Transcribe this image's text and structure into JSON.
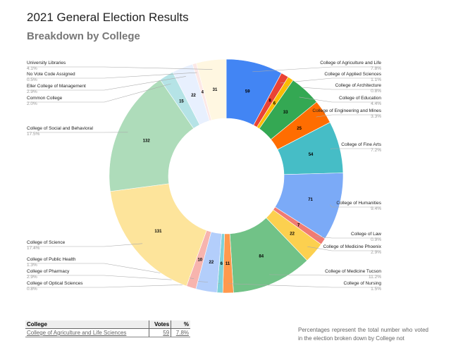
{
  "title": "2021 General Election Results",
  "subtitle": "Breakdown by College",
  "chart_data": {
    "type": "pie",
    "donut": true,
    "legend": "labels with leader lines",
    "slices": [
      {
        "name": "College of Agriculture and Life",
        "value": 59,
        "pct": "7.8%",
        "color": "#4285f4",
        "side": "r"
      },
      {
        "name": "College of Applied Sciences",
        "value": 8,
        "pct": "1.1%",
        "color": "#ea4335",
        "side": "r"
      },
      {
        "name": "College of Architecture",
        "value": 6,
        "pct": "0.8%",
        "color": "#fbbc04",
        "side": "r"
      },
      {
        "name": "College of Education",
        "value": 33,
        "pct": "4.4%",
        "color": "#34a853",
        "side": "r"
      },
      {
        "name": "College of Engineering and Mines",
        "value": 25,
        "pct": "3.3%",
        "color": "#ff6d01",
        "side": "r"
      },
      {
        "name": "College of Fine Arts",
        "value": 54,
        "pct": "7.2%",
        "color": "#46bdc6",
        "side": "r"
      },
      {
        "name": "College of Humanities",
        "value": 71,
        "pct": "9.4%",
        "color": "#7baaf7",
        "side": "r"
      },
      {
        "name": "College of Law",
        "value": 7,
        "pct": "0.9%",
        "color": "#f07b72",
        "side": "r"
      },
      {
        "name": "College of Medicine Phoenix",
        "value": 22,
        "pct": "2.9%",
        "color": "#fcd04f",
        "side": "r"
      },
      {
        "name": "College of Medicine Tucson",
        "value": 84,
        "pct": "11.2%",
        "color": "#71c287",
        "side": "r"
      },
      {
        "name": "College of Nursing",
        "value": 11,
        "pct": "1.5%",
        "color": "#ff994d",
        "side": "r"
      },
      {
        "name": "College of Optical Sciences",
        "value": 6,
        "pct": "0.8%",
        "color": "#7ed1d7",
        "side": "l"
      },
      {
        "name": "College of Pharmacy",
        "value": 22,
        "pct": "2.9%",
        "color": "#b3cefb",
        "side": "l"
      },
      {
        "name": "College of Public Health",
        "value": 10,
        "pct": "1.3%",
        "color": "#f7b4ae",
        "side": "l"
      },
      {
        "name": "College of Science",
        "value": 131,
        "pct": "17.4%",
        "color": "#fde49b",
        "side": "l"
      },
      {
        "name": "College of Social and Behavioral",
        "value": 132,
        "pct": "17.5%",
        "color": "#aedcba",
        "side": "l"
      },
      {
        "name": "Common College",
        "value": 15,
        "pct": "2.0%",
        "color": "#b5e3e6",
        "side": "l"
      },
      {
        "name": "Eller College of Management",
        "value": 22,
        "pct": "2.9%",
        "color": "#e8f0fe",
        "side": "l"
      },
      {
        "name": "No Vote Code Assigned",
        "value": 4,
        "pct": "0.5%",
        "color": "#fce8e6",
        "side": "l"
      },
      {
        "name": "University Libraries",
        "value": 31,
        "pct": "4.1%",
        "color": "#fff7e1",
        "side": "l"
      }
    ]
  },
  "table": {
    "headers": [
      "College",
      "Votes",
      "%"
    ],
    "rows": [
      [
        "College of Agriculture and Life Sciences",
        "59",
        "7.8%"
      ]
    ]
  },
  "note": "Percentages represent the total number who voted in the election broken down by College not"
}
